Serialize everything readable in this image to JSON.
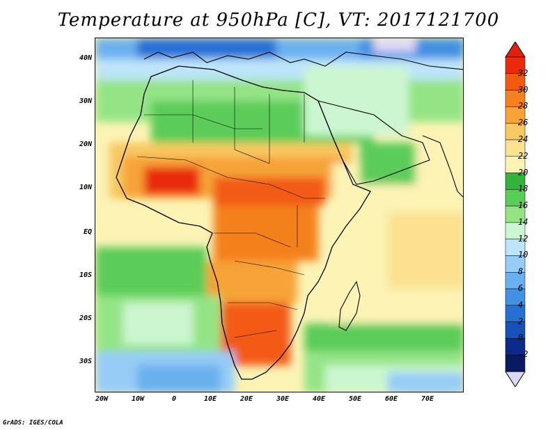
{
  "title": "Temperature at 950hPa [C], VT: 2017121700",
  "credit": "GrADS: IGES/COLA",
  "lat_labels": [
    "40N",
    "30N",
    "20N",
    "10N",
    "EQ",
    "10S",
    "20S",
    "30S"
  ],
  "lon_labels": [
    "20W",
    "10W",
    "0",
    "10E",
    "20E",
    "30E",
    "40E",
    "50E",
    "60E",
    "70E"
  ],
  "colorbar": {
    "labels": [
      "32",
      "30",
      "28",
      "26",
      "24",
      "22",
      "20",
      "18",
      "16",
      "14",
      "12",
      "10",
      "8",
      "6",
      "4",
      "2",
      "0",
      "-2"
    ],
    "colors_top_to_bottom": [
      "#ea2a0a",
      "#f25a12",
      "#f4801e",
      "#f6a338",
      "#f8c862",
      "#fbe190",
      "#fcf3b5",
      "#34b33c",
      "#5ccc58",
      "#94e486",
      "#ccf6d0",
      "#bde4fa",
      "#96ccf6",
      "#6ab0ef",
      "#4290e2",
      "#256fd5",
      "#1550bb",
      "#0c2a8c",
      "#0a1a60"
    ],
    "under_color": "#dcd8f8",
    "over_color": "#e0200a"
  },
  "colors": {
    "ocean_cold": "#6ab0ef",
    "ocean_cool": "#bde4fa",
    "ocean_mid": "#94e486",
    "ocean_warm": "#fcf3b5",
    "land_hot": "#f4801e",
    "land_warm": "#f8c862"
  }
}
